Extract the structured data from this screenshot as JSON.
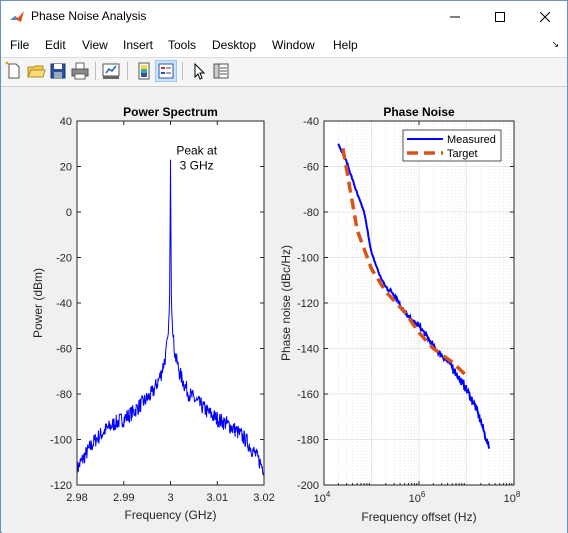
{
  "window": {
    "title": "Phase Noise Analysis",
    "controls": [
      "minimize",
      "maximize",
      "close"
    ]
  },
  "menu": {
    "items": [
      "File",
      "Edit",
      "View",
      "Insert",
      "Tools",
      "Desktop",
      "Window",
      "Help"
    ],
    "dock_arrow": "↘"
  },
  "toolbar": {
    "buttons": [
      {
        "name": "new-figure-icon"
      },
      {
        "name": "open-file-icon"
      },
      {
        "name": "save-icon"
      },
      {
        "name": "print-icon"
      },
      {
        "name": "link-plot-icon"
      },
      {
        "name": "insert-colorbar-icon"
      },
      {
        "name": "insert-legend-icon"
      },
      {
        "name": "pointer-icon"
      },
      {
        "name": "property-inspector-icon"
      }
    ]
  },
  "colors": {
    "measured": "#0000ff",
    "target": "#d95319",
    "spectrum": "#0000ff"
  },
  "chart_data": [
    {
      "type": "line",
      "title": "Power Spectrum",
      "xlabel": "Frequency (GHz)",
      "ylabel": "Power (dBm)",
      "xlim": [
        2.98,
        3.02
      ],
      "ylim": [
        -120,
        40
      ],
      "xticks": [
        "2.98",
        "2.99",
        "3",
        "3.01",
        "3.02"
      ],
      "yticks": [
        "-120",
        "-100",
        "-80",
        "-60",
        "-40",
        "-20",
        "0",
        "20",
        "40"
      ],
      "annotation": {
        "text": [
          "Peak at",
          "3 GHz"
        ],
        "x": 3.0056,
        "y": 20
      },
      "grid": false,
      "series": [
        {
          "x": [
            2.98,
            2.982,
            2.984,
            2.986,
            2.988,
            2.99,
            2.992,
            2.994,
            2.996,
            2.997,
            2.998,
            2.999,
            2.9995,
            2.9998,
            3.0,
            3.0002,
            3.0005,
            3.001,
            3.002,
            3.003,
            3.004,
            3.006,
            3.008,
            3.01,
            3.012,
            3.014,
            3.016,
            3.018,
            3.02
          ],
          "y": [
            -113,
            -106,
            -100,
            -96,
            -93,
            -91,
            -88,
            -84,
            -80,
            -76,
            -71,
            -63,
            -54,
            -40,
            23,
            -40,
            -54,
            -63,
            -71,
            -76,
            -80,
            -84,
            -88,
            -91,
            -93,
            -96,
            -100,
            -106,
            -113
          ]
        }
      ]
    },
    {
      "type": "line",
      "title": "Phase Noise",
      "xlabel": "Frequency offset (Hz)",
      "ylabel": "Phase noise (dBc/Hz)",
      "xscale": "log",
      "xlim": [
        10000,
        100000000
      ],
      "ylim": [
        -200,
        -40
      ],
      "xticks": [
        "10^4",
        "10^6",
        "10^8"
      ],
      "yticks": [
        "-200",
        "-180",
        "-160",
        "-140",
        "-120",
        "-100",
        "-80",
        "-60",
        "-40"
      ],
      "grid": true,
      "legend": {
        "placement": "top-right",
        "entries": [
          "Measured",
          "Target"
        ]
      },
      "series": [
        {
          "name": "Measured",
          "style": "solid",
          "x": [
            20000,
            30000,
            50000,
            70000,
            100000,
            150000,
            200000,
            300000,
            500000,
            700000,
            1000000,
            1500000,
            2000000,
            3000000,
            5000000,
            7000000,
            10000000,
            15000000,
            20000000,
            30000000
          ],
          "y": [
            -50,
            -58,
            -72,
            -80,
            -98,
            -108,
            -113,
            -116,
            -124,
            -128,
            -130,
            -135,
            -139,
            -143,
            -148,
            -153,
            -158,
            -165,
            -172,
            -184
          ]
        },
        {
          "name": "Target",
          "style": "dashed",
          "x": [
            25000,
            50000,
            100000,
            200000,
            500000,
            1000000,
            2000000,
            5000000,
            10000000
          ],
          "y": [
            -52,
            -88,
            -105,
            -115,
            -124,
            -133,
            -140,
            -146,
            -152
          ]
        }
      ]
    }
  ]
}
